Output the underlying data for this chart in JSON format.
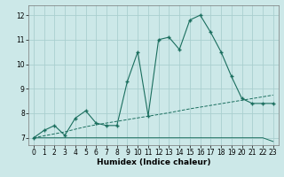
{
  "title": "",
  "xlabel": "Humidex (Indice chaleur)",
  "bg_color": "#cce8e8",
  "grid_color": "#aacfcf",
  "line_color": "#1a6e5e",
  "xlim": [
    -0.5,
    23.5
  ],
  "ylim": [
    6.7,
    12.4
  ],
  "xticks": [
    0,
    1,
    2,
    3,
    4,
    5,
    6,
    7,
    8,
    9,
    10,
    11,
    12,
    13,
    14,
    15,
    16,
    17,
    18,
    19,
    20,
    21,
    22,
    23
  ],
  "yticks": [
    7,
    8,
    9,
    10,
    11,
    12
  ],
  "line1_x": [
    0,
    1,
    2,
    3,
    4,
    5,
    6,
    7,
    8,
    9,
    10,
    11,
    12,
    13,
    14,
    15,
    16,
    17,
    18,
    19,
    20,
    21,
    22,
    23
  ],
  "line1_y": [
    7.0,
    7.3,
    7.5,
    7.1,
    7.8,
    8.1,
    7.6,
    7.5,
    7.5,
    9.3,
    10.5,
    7.9,
    11.0,
    11.1,
    10.6,
    11.8,
    12.0,
    11.3,
    10.5,
    9.5,
    8.6,
    8.4,
    8.4,
    8.4
  ],
  "line2_x": [
    0,
    1,
    2,
    3,
    4,
    5,
    6,
    7,
    8,
    9,
    10,
    11,
    12,
    13,
    14,
    15,
    16,
    17,
    18,
    19,
    20,
    21,
    22,
    23
  ],
  "line2_y": [
    7.0,
    7.08,
    7.16,
    7.24,
    7.35,
    7.45,
    7.53,
    7.6,
    7.67,
    7.74,
    7.81,
    7.88,
    7.95,
    8.02,
    8.1,
    8.18,
    8.25,
    8.32,
    8.39,
    8.46,
    8.53,
    8.6,
    8.67,
    8.74
  ],
  "line3_x": [
    0,
    1,
    2,
    3,
    4,
    5,
    6,
    7,
    8,
    9,
    10,
    11,
    12,
    13,
    14,
    15,
    16,
    17,
    18,
    19,
    20,
    21,
    22,
    23
  ],
  "line3_y": [
    7.0,
    7.0,
    7.0,
    7.0,
    7.0,
    7.0,
    7.0,
    7.0,
    7.0,
    7.0,
    7.0,
    7.0,
    7.0,
    7.0,
    7.0,
    7.0,
    7.0,
    7.0,
    7.0,
    7.0,
    7.0,
    7.0,
    7.0,
    6.85
  ],
  "tick_fontsize": 5.5,
  "xlabel_fontsize": 6.5
}
